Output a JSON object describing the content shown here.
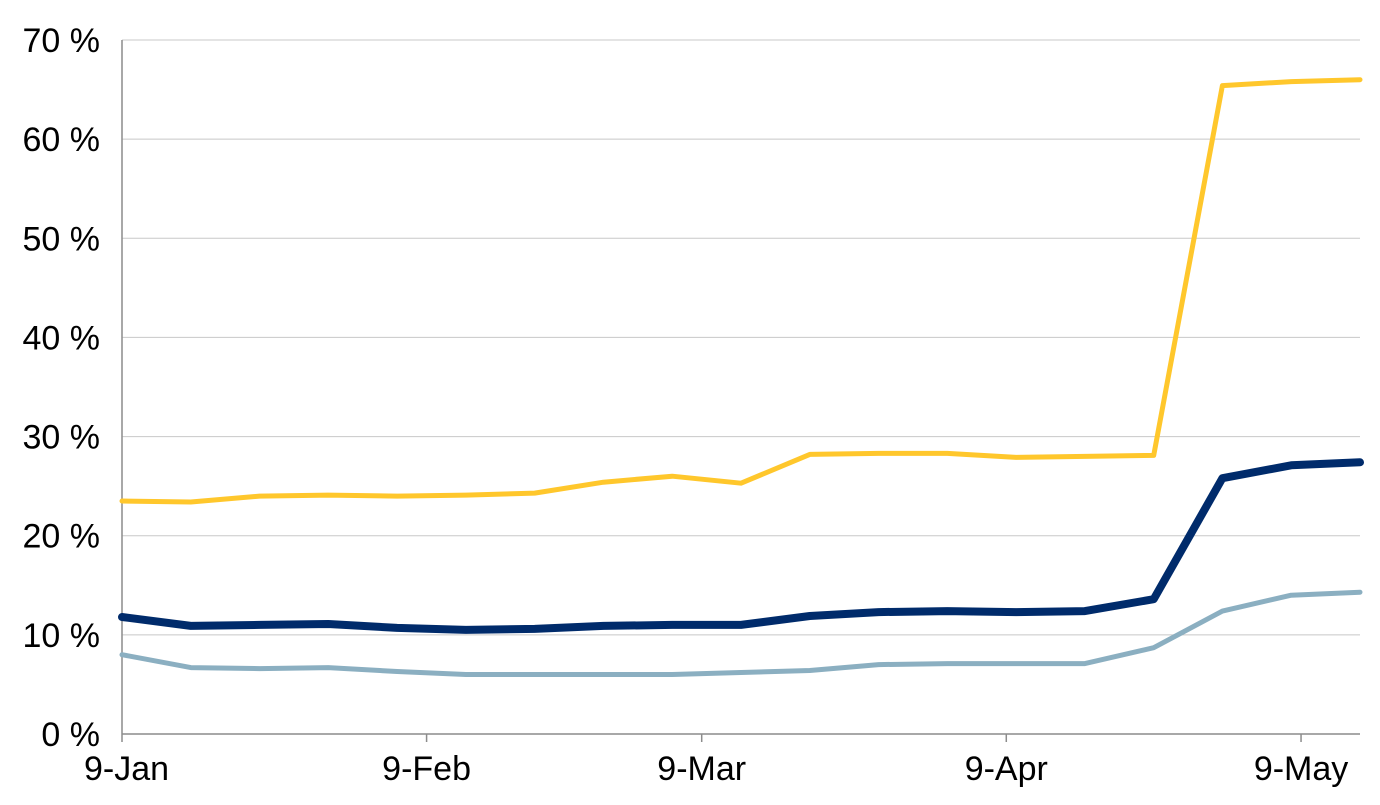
{
  "chart_data": {
    "type": "line",
    "title": "",
    "xlabel": "",
    "ylabel": "",
    "x_tick_labels": [
      "9-Jan",
      "9-Feb",
      "9-Mar",
      "9-Apr",
      "9-May"
    ],
    "x_tick_dates": [
      "2023-01-09",
      "2023-02-09",
      "2023-03-09",
      "2023-04-09",
      "2023-05-09"
    ],
    "x": [
      "2023-01-09",
      "2023-01-16",
      "2023-01-23",
      "2023-01-30",
      "2023-02-06",
      "2023-02-13",
      "2023-02-20",
      "2023-02-27",
      "2023-03-06",
      "2023-03-13",
      "2023-03-20",
      "2023-03-27",
      "2023-04-03",
      "2023-04-10",
      "2023-04-17",
      "2023-04-24",
      "2023-05-01",
      "2023-05-08",
      "2023-05-15"
    ],
    "xlim": [
      "2023-01-09",
      "2023-05-15"
    ],
    "ylim": [
      0,
      70
    ],
    "y_ticks": [
      0,
      10,
      20,
      30,
      40,
      50,
      60,
      70
    ],
    "y_tick_labels": [
      "0 %",
      "10 %",
      "20 %",
      "30 %",
      "40 %",
      "50 %",
      "60 %",
      "70 %"
    ],
    "grid": "horizontal",
    "legend": "none",
    "series": [
      {
        "color": "#FFC72C",
        "values": [
          23.5,
          23.4,
          24.0,
          24.1,
          24.0,
          24.1,
          24.3,
          25.4,
          26.0,
          25.3,
          28.2,
          28.3,
          28.3,
          27.9,
          28.0,
          28.1,
          65.4,
          65.8,
          66.0
        ]
      },
      {
        "color": "#002B6B",
        "values": [
          11.8,
          10.9,
          11.0,
          11.1,
          10.7,
          10.5,
          10.6,
          10.9,
          11.0,
          11.0,
          11.9,
          12.3,
          12.4,
          12.3,
          12.4,
          13.6,
          25.8,
          27.1,
          27.4
        ]
      },
      {
        "color": "#8BAFC1",
        "values": [
          8.0,
          6.7,
          6.6,
          6.7,
          6.3,
          6.0,
          6.0,
          6.0,
          6.0,
          6.2,
          6.4,
          7.0,
          7.1,
          7.1,
          7.1,
          8.7,
          12.4,
          14.0,
          14.3
        ]
      }
    ]
  }
}
